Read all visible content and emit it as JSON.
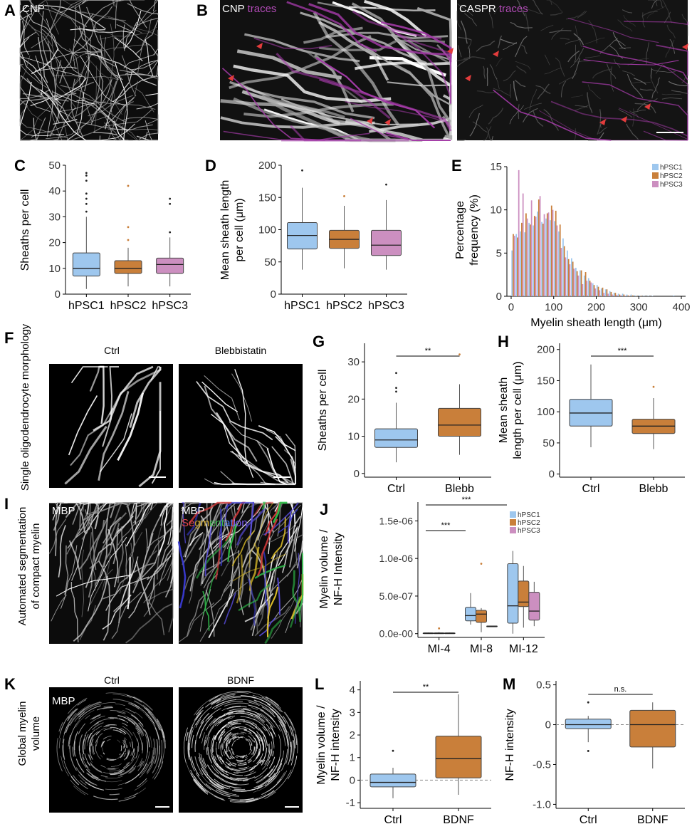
{
  "colors": {
    "hPSC1": "#9ec7ee",
    "hPSC2": "#c97f3a",
    "hPSC3": "#cc8fc0",
    "trace": "#a23aa6",
    "arrow": "#e33c3c",
    "black": "#000000"
  },
  "panels": {
    "A": {
      "letter": "A",
      "channel": "CNP"
    },
    "B": {
      "letter": "B",
      "left_channel": "CNP",
      "left_overlay": "traces",
      "right_channel": "CASPR",
      "right_overlay": "traces"
    },
    "C": {
      "letter": "C"
    },
    "D": {
      "letter": "D"
    },
    "E": {
      "letter": "E"
    },
    "F": {
      "letter": "F",
      "side_label": "Single oligodendrocyte morphology",
      "left_title": "Ctrl",
      "right_title": "Blebbistatin"
    },
    "G": {
      "letter": "G",
      "significance": "**"
    },
    "H": {
      "letter": "H",
      "significance": "***"
    },
    "I": {
      "letter": "I",
      "side_label_1": "Automated segmentation",
      "side_label_2": "of compact myelin",
      "left_channel": "MBP",
      "right_channel": "MBP",
      "seg_letters": [
        "S",
        "e",
        "g",
        "m",
        "e",
        "n",
        "t",
        "a",
        "t",
        "i",
        "o",
        "n"
      ]
    },
    "J": {
      "letter": "J",
      "sig_1": "***",
      "sig_2": "***"
    },
    "K": {
      "letter": "K",
      "side_label_1": "Global myelin",
      "side_label_2": "volume",
      "left_title": "Ctrl",
      "right_title": "BDNF",
      "channel": "MBP"
    },
    "L": {
      "letter": "L",
      "significance": "**"
    },
    "M": {
      "letter": "M",
      "significance": "n.s."
    }
  },
  "chart_data": [
    {
      "panel": "C",
      "type": "box",
      "categories": [
        "hPSC1",
        "hPSC2",
        "hPSC3"
      ],
      "series": [
        {
          "name": "hPSC1",
          "whisker_low": 2,
          "q1": 7,
          "median": 10,
          "q3": 16,
          "whisker_high": 30,
          "outliers": [
            32,
            35,
            37,
            39,
            44,
            46,
            47
          ]
        },
        {
          "name": "hPSC2",
          "whisker_low": 3,
          "q1": 8,
          "median": 10,
          "q3": 13,
          "whisker_high": 18,
          "outliers": [
            21,
            26,
            42
          ]
        },
        {
          "name": "hPSC3",
          "whisker_low": 3,
          "q1": 8,
          "median": 11.5,
          "q3": 14,
          "whisker_high": 22,
          "outliers": [
            24,
            35,
            37
          ]
        }
      ],
      "ylabel": "Sheaths per cell",
      "ylim": [
        0,
        50
      ],
      "yticks": [
        0,
        10,
        20,
        30,
        40,
        50
      ],
      "grid": false
    },
    {
      "panel": "D",
      "type": "box",
      "categories": [
        "hPSC1",
        "hPSC2",
        "hPSC3"
      ],
      "series": [
        {
          "name": "hPSC1",
          "whisker_low": 38,
          "q1": 70,
          "median": 91,
          "q3": 111,
          "whisker_high": 165,
          "outliers": [
            192
          ]
        },
        {
          "name": "hPSC2",
          "whisker_low": 40,
          "q1": 71,
          "median": 85,
          "q3": 99,
          "whisker_high": 137,
          "outliers": [
            152
          ]
        },
        {
          "name": "hPSC3",
          "whisker_low": 38,
          "q1": 60,
          "median": 76,
          "q3": 99,
          "whisker_high": 146,
          "outliers": [
            170
          ]
        }
      ],
      "ylabel_lines": [
        "Mean sheath length",
        "per cell (μm)"
      ],
      "ylim": [
        0,
        200
      ],
      "yticks": [
        0,
        50,
        100,
        150,
        200
      ],
      "grid": false
    },
    {
      "panel": "E",
      "type": "bar",
      "x": [
        5,
        15,
        25,
        35,
        45,
        55,
        65,
        75,
        85,
        95,
        105,
        115,
        125,
        135,
        145,
        155,
        165,
        175,
        185,
        195,
        205,
        215,
        225,
        235,
        245,
        255,
        265,
        275,
        285,
        295,
        305,
        315,
        325,
        335,
        345,
        355,
        365,
        375,
        385,
        395
      ],
      "series": [
        {
          "name": "hPSC1",
          "values": [
            5.3,
            7.2,
            7.5,
            7.4,
            8.5,
            8.2,
            9.8,
            8.6,
            9.0,
            8.8,
            8.7,
            7.5,
            6.7,
            5.3,
            4.4,
            3.3,
            3.0,
            2.4,
            2.1,
            1.5,
            1.3,
            0.9,
            0.8,
            0.6,
            0.4,
            0.3,
            0.3,
            0.2,
            0.2,
            0.1,
            0.1,
            0.05,
            0.05,
            0.05,
            0.0,
            0.0,
            0.0,
            0.0,
            0.1,
            0.0
          ]
        },
        {
          "name": "hPSC2",
          "values": [
            7.2,
            6.8,
            8.5,
            9.6,
            8.3,
            9.3,
            11.2,
            8.4,
            9.6,
            10.5,
            9.9,
            8.3,
            5.8,
            4.3,
            4.0,
            2.9,
            3.0,
            2.8,
            1.8,
            1.3,
            1.1,
            1.0,
            0.8,
            0.5,
            0.4,
            0.2,
            0.2,
            0.1,
            0.1,
            0.05,
            0.05,
            0.0,
            0.0,
            0.0,
            0.0,
            0.0,
            0.0,
            0.0,
            0.0,
            0.0
          ]
        },
        {
          "name": "hPSC3",
          "values": [
            7.0,
            14.6,
            11.9,
            9.0,
            11.1,
            9.2,
            11.6,
            9.5,
            9.7,
            10.0,
            8.2,
            5.6,
            4.5,
            3.7,
            3.2,
            2.4,
            1.4,
            1.8,
            1.6,
            0.9,
            0.7,
            0.4,
            0.3,
            0.2,
            0.15,
            0.1,
            0.05,
            0.05,
            0.0,
            0.0,
            0.0,
            0.0,
            0.0,
            0.0,
            0.0,
            0.0,
            0.0,
            0.0,
            0.0,
            0.0
          ]
        }
      ],
      "xlabel": "Myelin sheath length (μm)",
      "ylabel_lines": [
        "Percentage",
        "frequency (%)"
      ],
      "xlim": [
        -10,
        410
      ],
      "xticks": [
        0,
        100,
        200,
        300,
        400
      ],
      "ylim": [
        0,
        15
      ],
      "yticks": [
        0,
        5,
        10,
        15
      ],
      "legend": "top-right",
      "grid": false
    },
    {
      "panel": "G",
      "type": "box",
      "categories": [
        "Ctrl",
        "Blebb"
      ],
      "series": [
        {
          "name": "Ctrl",
          "whisker_low": 3,
          "q1": 7,
          "median": 9,
          "q3": 12,
          "whisker_high": 19,
          "outliers": [
            22,
            23,
            27
          ]
        },
        {
          "name": "Blebb",
          "whisker_low": 5,
          "q1": 10,
          "median": 13,
          "q3": 17.5,
          "whisker_high": 24,
          "outliers": [
            32
          ]
        }
      ],
      "ylabel": "Sheaths per cell",
      "ylim": [
        -1,
        35
      ],
      "yticks": [
        0,
        10,
        20,
        30
      ],
      "grid": false
    },
    {
      "panel": "H",
      "type": "box",
      "categories": [
        "Ctrl",
        "Blebb"
      ],
      "series": [
        {
          "name": "Ctrl",
          "whisker_low": 43,
          "q1": 77,
          "median": 98,
          "q3": 120,
          "whisker_high": 176,
          "outliers": []
        },
        {
          "name": "Blebb",
          "whisker_low": 40,
          "q1": 65,
          "median": 77,
          "q3": 88,
          "whisker_high": 122,
          "outliers": [
            140
          ]
        }
      ],
      "ylabel_lines": [
        "Mean sheath",
        "length per cell (μm)"
      ],
      "ylim": [
        -5,
        210
      ],
      "yticks": [
        0,
        50,
        100,
        150,
        200
      ],
      "grid": false
    },
    {
      "panel": "J",
      "type": "box",
      "categories": [
        "MI-4",
        "MI-8",
        "MI-12"
      ],
      "series": [
        {
          "name": "hPSC1",
          "boxes": [
            {
              "whisker_low": 0.0,
              "q1": 0.0,
              "median": 5e-09,
              "q3": 1e-08,
              "whisker_high": 1.5e-08,
              "outliers": []
            },
            {
              "whisker_low": 1.2e-07,
              "q1": 1.7e-07,
              "median": 2.4e-07,
              "q3": 3.5e-07,
              "whisker_high": 5.4e-07,
              "outliers": []
            },
            {
              "whisker_low": 0.0,
              "q1": 1.4e-07,
              "median": 3.7e-07,
              "q3": 9.3e-07,
              "whisker_high": 1.1e-06,
              "outliers": []
            }
          ]
        },
        {
          "name": "hPSC2",
          "boxes": [
            {
              "whisker_low": 0.0,
              "q1": 0.0,
              "median": 5e-09,
              "q3": 1e-08,
              "whisker_high": 2e-08,
              "outliers": [
                7e-08
              ]
            },
            {
              "whisker_low": 2e-08,
              "q1": 1.5e-07,
              "median": 2.6e-07,
              "q3": 3.1e-07,
              "whisker_high": 3.4e-07,
              "outliers": [
                9.3e-07
              ]
            },
            {
              "whisker_low": 8e-08,
              "q1": 3.6e-07,
              "median": 4.2e-07,
              "q3": 7e-07,
              "whisker_high": 9e-07,
              "outliers": []
            }
          ]
        },
        {
          "name": "hPSC3",
          "boxes": [
            {
              "whisker_low": 0.0,
              "q1": 0.0,
              "median": 5e-09,
              "q3": 1e-08,
              "whisker_high": 1.5e-08,
              "outliers": []
            },
            {
              "whisker_low": 1e-07,
              "q1": 1e-07,
              "median": 1e-07,
              "q3": 1e-07,
              "whisker_high": 1e-07,
              "outliers": []
            },
            {
              "whisker_low": 1e-07,
              "q1": 1.8e-07,
              "median": 3e-07,
              "q3": 5.5e-07,
              "whisker_high": 6.9e-07,
              "outliers": []
            }
          ]
        }
      ],
      "ylabel_lines": [
        "Myelin volume /",
        "NF-H Intensity"
      ],
      "ylim": [
        -5e-08,
        1.75e-06
      ],
      "ytick_values": [
        0,
        5e-07,
        1e-06,
        1.5e-06
      ],
      "ytick_labels": [
        "0.0e-00",
        "5.0e-07",
        "1.0e-06",
        "1.5e-06"
      ],
      "legend": "top-right",
      "grid": false
    },
    {
      "panel": "L",
      "type": "box",
      "categories": [
        "Ctrl",
        "BDNF"
      ],
      "series": [
        {
          "name": "Ctrl",
          "whisker_low": -0.8,
          "q1": -0.3,
          "median": -0.1,
          "q3": 0.27,
          "whisker_high": 0.55,
          "outliers": [
            1.3
          ]
        },
        {
          "name": "BDNF",
          "whisker_low": -0.65,
          "q1": 0.1,
          "median": 0.95,
          "q3": 1.95,
          "whisker_high": 3.8,
          "outliers": []
        }
      ],
      "ylabel_lines": [
        "Myelin volume /",
        "NF-H intensity"
      ],
      "ylim": [
        -1.25,
        4.4
      ],
      "yticks": [
        -1,
        0,
        1,
        2,
        3,
        4
      ],
      "reference_line": 0,
      "grid": false
    },
    {
      "panel": "M",
      "type": "box",
      "categories": [
        "Ctrl",
        "BDNF"
      ],
      "series": [
        {
          "name": "Ctrl",
          "whisker_low": -0.22,
          "q1": -0.05,
          "median": 0.0,
          "q3": 0.07,
          "whisker_high": 0.11,
          "outliers": [
            0.28,
            -0.33
          ]
        },
        {
          "name": "BDNF",
          "whisker_low": -0.55,
          "q1": -0.28,
          "median": 0.0,
          "q3": 0.18,
          "whisker_high": 0.28,
          "outliers": []
        }
      ],
      "ylabel": "NF-H intensity",
      "ylim": [
        -1.05,
        0.55
      ],
      "yticks": [
        -1.0,
        -0.5,
        0,
        0.5
      ],
      "ytick_labels": [
        "-1.0",
        "-0.5",
        "0",
        "0.5"
      ],
      "reference_line": 0,
      "grid": false
    }
  ]
}
